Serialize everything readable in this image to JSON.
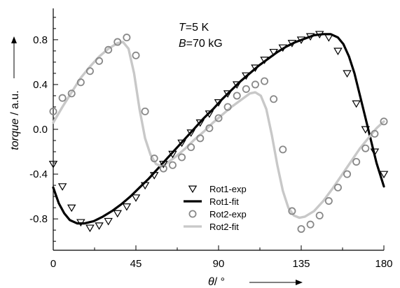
{
  "chart_data": {
    "type": "scatter",
    "xlabel_symbol": "θ",
    "xlabel_unit": "/ °",
    "ylabel_word": "torque",
    "ylabel_unit": " / a.u.",
    "xlim": [
      0,
      180
    ],
    "ylim": [
      -1.08,
      1.08
    ],
    "x_ticks": [
      "0",
      "45",
      "90",
      "135",
      "180"
    ],
    "y_ticks": [
      "0.8",
      "0.4",
      "0.0",
      "-0.4",
      "-0.8"
    ],
    "annotation": {
      "temp_symbol": "T",
      "temp_value": "=5 K",
      "field_symbol": "B",
      "field_value": "=70 kG"
    },
    "series": [
      {
        "name": "Rot1-exp",
        "kind": "marker",
        "marker": "triangle-down",
        "color": "#000000",
        "points": [
          [
            0,
            -0.31
          ],
          [
            5,
            -0.51
          ],
          [
            10,
            -0.7
          ],
          [
            15,
            -0.83
          ],
          [
            20,
            -0.88
          ],
          [
            25,
            -0.86
          ],
          [
            30,
            -0.82
          ],
          [
            35,
            -0.75
          ],
          [
            40,
            -0.69
          ],
          [
            45,
            -0.61
          ],
          [
            50,
            -0.5
          ],
          [
            55,
            -0.41
          ],
          [
            60,
            -0.31
          ],
          [
            65,
            -0.22
          ],
          [
            70,
            -0.12
          ],
          [
            75,
            -0.03
          ],
          [
            80,
            0.06
          ],
          [
            85,
            0.14
          ],
          [
            90,
            0.24
          ],
          [
            95,
            0.32
          ],
          [
            100,
            0.4
          ],
          [
            105,
            0.48
          ],
          [
            110,
            0.55
          ],
          [
            115,
            0.62
          ],
          [
            120,
            0.69
          ],
          [
            125,
            0.73
          ],
          [
            130,
            0.77
          ],
          [
            135,
            0.8
          ],
          [
            140,
            0.83
          ],
          [
            145,
            0.85
          ],
          [
            150,
            0.82
          ],
          [
            155,
            0.7
          ],
          [
            160,
            0.5
          ],
          [
            165,
            0.23
          ],
          [
            170,
            0.0
          ],
          [
            175,
            -0.2
          ],
          [
            180,
            -0.4
          ]
        ]
      },
      {
        "name": "Rot1-fit",
        "kind": "line",
        "color": "#000000",
        "points": [
          [
            0,
            -0.52
          ],
          [
            3,
            -0.66
          ],
          [
            6,
            -0.75
          ],
          [
            9,
            -0.81
          ],
          [
            13,
            -0.84
          ],
          [
            17,
            -0.84
          ],
          [
            22,
            -0.82
          ],
          [
            27,
            -0.78
          ],
          [
            32,
            -0.73
          ],
          [
            37,
            -0.67
          ],
          [
            42,
            -0.6
          ],
          [
            47,
            -0.52
          ],
          [
            52,
            -0.44
          ],
          [
            57,
            -0.35
          ],
          [
            62,
            -0.26
          ],
          [
            67,
            -0.17
          ],
          [
            72,
            -0.08
          ],
          [
            77,
            0.01
          ],
          [
            82,
            0.1
          ],
          [
            87,
            0.18
          ],
          [
            92,
            0.27
          ],
          [
            97,
            0.35
          ],
          [
            102,
            0.43
          ],
          [
            107,
            0.5
          ],
          [
            112,
            0.57
          ],
          [
            117,
            0.63
          ],
          [
            122,
            0.69
          ],
          [
            127,
            0.74
          ],
          [
            132,
            0.78
          ],
          [
            137,
            0.81
          ],
          [
            142,
            0.84
          ],
          [
            147,
            0.85
          ],
          [
            151,
            0.85
          ],
          [
            155,
            0.82
          ],
          [
            158,
            0.76
          ],
          [
            161,
            0.65
          ],
          [
            164,
            0.5
          ],
          [
            167,
            0.3
          ],
          [
            170,
            0.1
          ],
          [
            173,
            -0.1
          ],
          [
            176,
            -0.3
          ],
          [
            180,
            -0.51
          ]
        ]
      },
      {
        "name": "Rot2-exp",
        "kind": "marker",
        "marker": "circle",
        "color": "#888888",
        "points": [
          [
            0,
            0.16
          ],
          [
            5,
            0.28
          ],
          [
            10,
            0.32
          ],
          [
            15,
            0.42
          ],
          [
            20,
            0.52
          ],
          [
            25,
            0.61
          ],
          [
            30,
            0.71
          ],
          [
            35,
            0.78
          ],
          [
            40,
            0.82
          ],
          [
            45,
            0.66
          ],
          [
            50,
            0.16
          ],
          [
            55,
            -0.26
          ],
          [
            60,
            -0.35
          ],
          [
            65,
            -0.32
          ],
          [
            70,
            -0.25
          ],
          [
            75,
            -0.16
          ],
          [
            80,
            -0.08
          ],
          [
            85,
            0.01
          ],
          [
            90,
            0.1
          ],
          [
            95,
            0.2
          ],
          [
            100,
            0.3
          ],
          [
            105,
            0.36
          ],
          [
            110,
            0.4
          ],
          [
            115,
            0.43
          ],
          [
            120,
            0.27
          ],
          [
            125,
            -0.18
          ],
          [
            130,
            -0.73
          ],
          [
            135,
            -0.89
          ],
          [
            140,
            -0.85
          ],
          [
            145,
            -0.77
          ],
          [
            150,
            -0.64
          ],
          [
            155,
            -0.52
          ],
          [
            160,
            -0.4
          ],
          [
            165,
            -0.29
          ],
          [
            170,
            -0.17
          ],
          [
            175,
            -0.04
          ],
          [
            180,
            0.07
          ]
        ]
      },
      {
        "name": "Rot2-fit",
        "kind": "line",
        "color": "#c8c8c8",
        "points": [
          [
            0,
            0.06
          ],
          [
            5,
            0.2
          ],
          [
            10,
            0.33
          ],
          [
            15,
            0.46
          ],
          [
            20,
            0.56
          ],
          [
            25,
            0.65
          ],
          [
            30,
            0.72
          ],
          [
            35,
            0.77
          ],
          [
            38,
            0.78
          ],
          [
            41,
            0.72
          ],
          [
            44,
            0.5
          ],
          [
            47,
            0.18
          ],
          [
            50,
            -0.08
          ],
          [
            53,
            -0.23
          ],
          [
            56,
            -0.31
          ],
          [
            59,
            -0.33
          ],
          [
            62,
            -0.3
          ],
          [
            67,
            -0.24
          ],
          [
            72,
            -0.17
          ],
          [
            77,
            -0.09
          ],
          [
            82,
            -0.02
          ],
          [
            87,
            0.06
          ],
          [
            92,
            0.13
          ],
          [
            97,
            0.2
          ],
          [
            102,
            0.26
          ],
          [
            107,
            0.32
          ],
          [
            110,
            0.33
          ],
          [
            113,
            0.3
          ],
          [
            116,
            0.18
          ],
          [
            119,
            -0.05
          ],
          [
            122,
            -0.32
          ],
          [
            125,
            -0.55
          ],
          [
            128,
            -0.7
          ],
          [
            131,
            -0.77
          ],
          [
            134,
            -0.79
          ],
          [
            137,
            -0.78
          ],
          [
            142,
            -0.73
          ],
          [
            147,
            -0.64
          ],
          [
            152,
            -0.53
          ],
          [
            157,
            -0.41
          ],
          [
            162,
            -0.29
          ],
          [
            167,
            -0.17
          ],
          [
            172,
            -0.07
          ],
          [
            176,
            0.01
          ],
          [
            180,
            0.07
          ]
        ]
      }
    ]
  }
}
